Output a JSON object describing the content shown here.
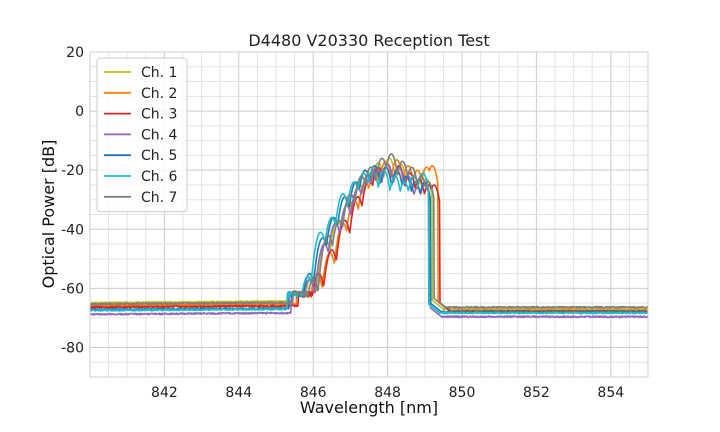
{
  "chart_data": {
    "type": "line",
    "title": "D4480 V20330 Reception Test",
    "xlabel": "Wavelength [nm]",
    "ylabel": "Optical Power [dB]",
    "xlim": [
      840.0,
      855.0
    ],
    "ylim": [
      -90,
      20
    ],
    "x_ticks": [
      842,
      844,
      846,
      848,
      850,
      852,
      854
    ],
    "y_ticks": [
      20,
      0,
      -20,
      -40,
      -60,
      -80
    ],
    "x_minor_step": 0.5,
    "y_minor_step": 5,
    "grid": true,
    "legend_position": "top-left",
    "series": [
      {
        "name": "Ch. 1",
        "color": "#bcbd22",
        "floor_left": -64.9,
        "floor_right": -67.0,
        "peaks": [
          [
            845.58,
            -61.5
          ],
          [
            845.95,
            -56
          ],
          [
            846.35,
            -44
          ],
          [
            846.65,
            -37
          ],
          [
            846.95,
            -30
          ],
          [
            847.25,
            -25
          ],
          [
            847.5,
            -21
          ],
          [
            847.75,
            -17.5
          ],
          [
            848.05,
            -16
          ],
          [
            848.35,
            -18
          ],
          [
            848.6,
            -21
          ],
          [
            848.85,
            -24
          ],
          [
            849.05,
            -23
          ]
        ],
        "edges": [
          845.45,
          849.2
        ]
      },
      {
        "name": "Ch. 2",
        "color": "#ff7f0e",
        "floor_left": -65.8,
        "floor_right": -67.5,
        "peaks": [
          [
            845.7,
            -62
          ],
          [
            846.1,
            -55
          ],
          [
            846.45,
            -48
          ],
          [
            846.8,
            -38
          ],
          [
            847.1,
            -30
          ],
          [
            847.4,
            -24
          ],
          [
            847.65,
            -20
          ],
          [
            847.95,
            -17
          ],
          [
            848.25,
            -16.5
          ],
          [
            848.55,
            -18.5
          ],
          [
            848.8,
            -20
          ],
          [
            849.05,
            -19
          ],
          [
            849.2,
            -18.5
          ]
        ],
        "edges": [
          845.55,
          849.35
        ]
      },
      {
        "name": "Ch. 3",
        "color": "#d62728",
        "floor_left": -66.4,
        "floor_right": -67.8,
        "peaks": [
          [
            845.75,
            -63
          ],
          [
            846.15,
            -55
          ],
          [
            846.5,
            -47
          ],
          [
            846.85,
            -37
          ],
          [
            847.2,
            -29
          ],
          [
            847.5,
            -23
          ],
          [
            847.75,
            -19
          ],
          [
            848.0,
            -18
          ],
          [
            848.3,
            -18.5
          ],
          [
            848.6,
            -21
          ],
          [
            848.85,
            -23
          ],
          [
            849.1,
            -25
          ],
          [
            849.25,
            -25
          ]
        ],
        "edges": [
          845.6,
          849.4
        ]
      },
      {
        "name": "Ch. 4",
        "color": "#9467bd",
        "floor_left": -68.8,
        "floor_right": -69.6,
        "peaks": [
          [
            845.55,
            -63
          ],
          [
            845.9,
            -57
          ],
          [
            846.3,
            -45
          ],
          [
            846.6,
            -38
          ],
          [
            846.9,
            -32
          ],
          [
            847.2,
            -26
          ],
          [
            847.45,
            -22
          ],
          [
            847.7,
            -19
          ],
          [
            848.0,
            -18
          ],
          [
            848.3,
            -19
          ],
          [
            848.55,
            -22
          ],
          [
            848.8,
            -26
          ],
          [
            849.0,
            -25
          ]
        ],
        "edges": [
          845.4,
          849.15
        ]
      },
      {
        "name": "Ch. 5",
        "color": "#1f77b4",
        "floor_left": -67.2,
        "floor_right": -68.0,
        "peaks": [
          [
            845.5,
            -62
          ],
          [
            845.9,
            -55
          ],
          [
            846.25,
            -43
          ],
          [
            846.55,
            -36
          ],
          [
            846.85,
            -29
          ],
          [
            847.15,
            -24
          ],
          [
            847.4,
            -20
          ],
          [
            847.65,
            -18.5
          ],
          [
            847.95,
            -19
          ],
          [
            848.25,
            -20
          ],
          [
            848.5,
            -22
          ],
          [
            848.75,
            -24
          ],
          [
            849.0,
            -24
          ]
        ],
        "edges": [
          845.35,
          849.15
        ]
      },
      {
        "name": "Ch. 6",
        "color": "#17becf",
        "floor_left": -67.5,
        "floor_right": -68.3,
        "peaks": [
          [
            845.45,
            -62
          ],
          [
            845.85,
            -56
          ],
          [
            846.2,
            -41
          ],
          [
            846.5,
            -36
          ],
          [
            846.8,
            -28
          ],
          [
            847.1,
            -24
          ],
          [
            847.35,
            -21
          ],
          [
            847.6,
            -20
          ],
          [
            847.9,
            -20
          ],
          [
            848.2,
            -22
          ],
          [
            848.45,
            -24
          ],
          [
            848.7,
            -22
          ],
          [
            848.95,
            -21
          ]
        ],
        "edges": [
          845.3,
          849.1
        ]
      },
      {
        "name": "Ch. 7",
        "color": "#7f7f7f",
        "floor_left": -65.3,
        "floor_right": -66.4,
        "peaks": [
          [
            845.6,
            -62
          ],
          [
            846.0,
            -57
          ],
          [
            846.4,
            -42
          ],
          [
            846.7,
            -37
          ],
          [
            847.0,
            -28
          ],
          [
            847.3,
            -22
          ],
          [
            847.55,
            -19
          ],
          [
            847.85,
            -16
          ],
          [
            848.1,
            -14.5
          ],
          [
            848.4,
            -17
          ],
          [
            848.65,
            -19
          ],
          [
            848.9,
            -22
          ],
          [
            849.1,
            -24
          ]
        ],
        "edges": [
          845.45,
          849.25
        ]
      }
    ]
  }
}
